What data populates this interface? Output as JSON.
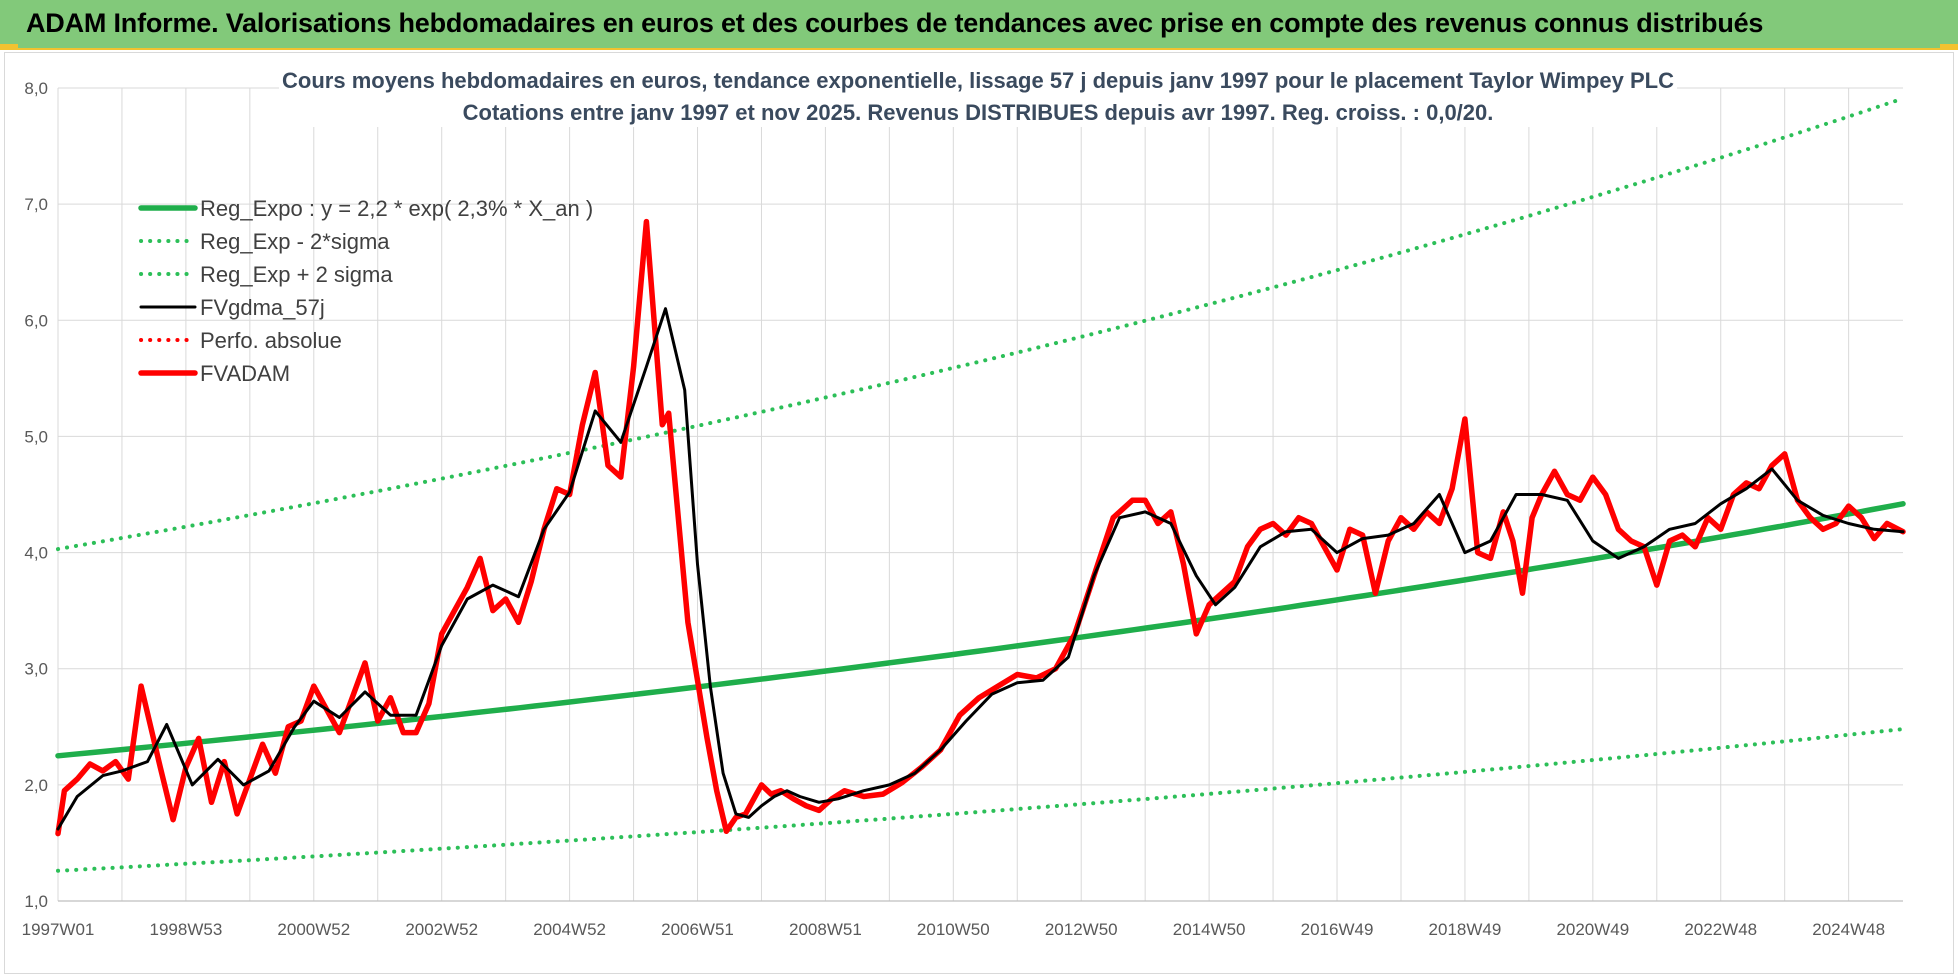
{
  "banner": {
    "title": "ADAM Informe. Valorisations hebdomadaires en euros et des courbes de tendances avec prise en compte des revenus connus distribués"
  },
  "colors": {
    "banner_bg": "#82c97a",
    "accent_yellow": "#f2c230",
    "trend_green": "#1fae4b",
    "dotted_green": "#2cbf58",
    "smooth_black": "#000000",
    "price_red": "#ff0000"
  },
  "chart_data": {
    "type": "line",
    "title": "Cours moyens hebdomadaires en euros, tendance exponentielle, lissage 57 j depuis janv 1997 pour le placement Taylor Wimpey PLC",
    "subtitle": "Cotations entre janv 1997 et nov 2025. Revenus DISTRIBUES depuis avr 1997. Reg. croiss. : 0,0/20.",
    "xlabel": "",
    "ylabel": "",
    "ylim": [
      1.0,
      8.0
    ],
    "y_ticks": [
      "1,0",
      "2,0",
      "3,0",
      "4,0",
      "5,0",
      "6,0",
      "7,0",
      "8,0"
    ],
    "xlim": [
      1997.0,
      2025.85
    ],
    "x_ticks": [
      {
        "x": 1997.0,
        "label": "1997W01"
      },
      {
        "x": 1999.0,
        "label": "1998W53"
      },
      {
        "x": 2001.0,
        "label": "2000W52"
      },
      {
        "x": 2003.0,
        "label": "2002W52"
      },
      {
        "x": 2005.0,
        "label": "2004W52"
      },
      {
        "x": 2007.0,
        "label": "2006W51"
      },
      {
        "x": 2009.0,
        "label": "2008W51"
      },
      {
        "x": 2011.0,
        "label": "2010W50"
      },
      {
        "x": 2013.0,
        "label": "2012W50"
      },
      {
        "x": 2015.0,
        "label": "2014W50"
      },
      {
        "x": 2017.0,
        "label": "2016W49"
      },
      {
        "x": 2019.0,
        "label": "2018W49"
      },
      {
        "x": 2021.0,
        "label": "2020W49"
      },
      {
        "x": 2023.0,
        "label": "2022W48"
      },
      {
        "x": 2025.0,
        "label": "2024W48"
      }
    ],
    "grid": true,
    "legend_position": "top-left",
    "series": [
      {
        "name": "Reg_Expo : y = 2,2 * exp( 2,3% *  X_an )",
        "style": "solid-thick",
        "color": "#1fae4b",
        "x": [
          1997.0,
          2001.0,
          2005.0,
          2009.0,
          2013.0,
          2017.0,
          2021.0,
          2025.85
        ],
        "y": [
          2.25,
          2.47,
          2.7,
          2.96,
          3.27,
          3.58,
          3.95,
          4.42
        ]
      },
      {
        "name": "Reg_Exp - 2*sigma",
        "style": "dotted",
        "color": "#2cbf58",
        "x": [
          1997.0,
          2001.0,
          2005.0,
          2009.0,
          2013.0,
          2017.0,
          2021.0,
          2025.85
        ],
        "y": [
          1.26,
          1.38,
          1.52,
          1.66,
          1.83,
          2.01,
          2.21,
          2.48
        ]
      },
      {
        "name": "Reg_Exp + 2 sigma",
        "style": "dotted",
        "color": "#2cbf58",
        "x": [
          1997.0,
          2001.0,
          2005.0,
          2009.0,
          2013.0,
          2017.0,
          2021.0,
          2025.85
        ],
        "y": [
          4.03,
          4.42,
          4.84,
          5.3,
          5.86,
          6.42,
          7.06,
          7.91
        ]
      },
      {
        "name": "FVgdma_57j",
        "style": "solid",
        "color": "#000000",
        "x": [
          1997.0,
          1997.3,
          1997.7,
          1998.0,
          1998.4,
          1998.7,
          1999.1,
          1999.5,
          1999.9,
          2000.3,
          2000.7,
          2001.0,
          2001.4,
          2001.8,
          2002.2,
          2002.6,
          2003.0,
          2003.4,
          2003.8,
          2004.2,
          2004.6,
          2005.0,
          2005.4,
          2005.8,
          2006.2,
          2006.5,
          2006.8,
          2007.0,
          2007.2,
          2007.4,
          2007.6,
          2007.8,
          2008.0,
          2008.2,
          2008.4,
          2008.6,
          2008.9,
          2009.2,
          2009.6,
          2010.0,
          2010.4,
          2010.8,
          2011.2,
          2011.6,
          2012.0,
          2012.4,
          2012.8,
          2013.2,
          2013.6,
          2014.0,
          2014.4,
          2014.8,
          2015.1,
          2015.4,
          2015.8,
          2016.2,
          2016.6,
          2017.0,
          2017.4,
          2017.8,
          2018.2,
          2018.6,
          2019.0,
          2019.4,
          2019.8,
          2020.2,
          2020.6,
          2021.0,
          2021.4,
          2021.8,
          2022.2,
          2022.6,
          2023.0,
          2023.4,
          2023.8,
          2024.2,
          2024.6,
          2025.0,
          2025.4,
          2025.85
        ],
        "y": [
          1.62,
          1.9,
          2.08,
          2.12,
          2.2,
          2.52,
          2.0,
          2.22,
          2.0,
          2.12,
          2.5,
          2.72,
          2.58,
          2.8,
          2.6,
          2.6,
          3.2,
          3.6,
          3.72,
          3.62,
          4.2,
          4.52,
          5.22,
          4.95,
          5.6,
          6.1,
          5.4,
          3.9,
          2.85,
          2.1,
          1.75,
          1.72,
          1.82,
          1.9,
          1.95,
          1.9,
          1.85,
          1.88,
          1.95,
          2.0,
          2.1,
          2.3,
          2.55,
          2.78,
          2.88,
          2.9,
          3.1,
          3.8,
          4.3,
          4.35,
          4.25,
          3.8,
          3.55,
          3.7,
          4.05,
          4.18,
          4.2,
          4.0,
          4.12,
          4.15,
          4.25,
          4.5,
          4.0,
          4.1,
          4.5,
          4.5,
          4.45,
          4.1,
          3.95,
          4.05,
          4.2,
          4.25,
          4.42,
          4.55,
          4.72,
          4.45,
          4.32,
          4.25,
          4.2,
          4.18
        ]
      },
      {
        "name": "Perfo. absolue",
        "style": "dotted",
        "color": "#ff0000",
        "x": [],
        "y": []
      },
      {
        "name": "FVADAM",
        "style": "solid-thick",
        "color": "#ff0000",
        "x": [
          1997.0,
          1997.1,
          1997.3,
          1997.5,
          1997.7,
          1997.9,
          1998.1,
          1998.3,
          1998.45,
          1998.6,
          1998.8,
          1999.0,
          1999.2,
          1999.4,
          1999.6,
          1999.8,
          2000.0,
          2000.2,
          2000.4,
          2000.6,
          2000.8,
          2001.0,
          2001.2,
          2001.4,
          2001.6,
          2001.8,
          2002.0,
          2002.2,
          2002.4,
          2002.6,
          2002.8,
          2003.0,
          2003.2,
          2003.4,
          2003.6,
          2003.8,
          2004.0,
          2004.2,
          2004.4,
          2004.6,
          2004.8,
          2005.0,
          2005.2,
          2005.4,
          2005.6,
          2005.8,
          2006.0,
          2006.2,
          2006.35,
          2006.45,
          2006.55,
          2006.7,
          2006.85,
          2007.0,
          2007.15,
          2007.3,
          2007.45,
          2007.6,
          2007.75,
          2007.9,
          2008.0,
          2008.15,
          2008.3,
          2008.5,
          2008.7,
          2008.9,
          2009.1,
          2009.3,
          2009.6,
          2009.9,
          2010.2,
          2010.5,
          2010.8,
          2011.1,
          2011.4,
          2011.7,
          2012.0,
          2012.3,
          2012.6,
          2012.9,
          2013.2,
          2013.5,
          2013.8,
          2014.0,
          2014.2,
          2014.4,
          2014.6,
          2014.8,
          2015.0,
          2015.2,
          2015.4,
          2015.6,
          2015.8,
          2016.0,
          2016.2,
          2016.4,
          2016.6,
          2016.8,
          2017.0,
          2017.2,
          2017.4,
          2017.6,
          2017.8,
          2018.0,
          2018.2,
          2018.4,
          2018.6,
          2018.8,
          2019.0,
          2019.2,
          2019.4,
          2019.6,
          2019.75,
          2019.9,
          2020.05,
          2020.2,
          2020.4,
          2020.6,
          2020.8,
          2021.0,
          2021.2,
          2021.4,
          2021.6,
          2021.8,
          2022.0,
          2022.2,
          2022.4,
          2022.6,
          2022.8,
          2023.0,
          2023.2,
          2023.4,
          2023.6,
          2023.8,
          2024.0,
          2024.2,
          2024.4,
          2024.6,
          2024.8,
          2025.0,
          2025.2,
          2025.4,
          2025.6,
          2025.85
        ],
        "y": [
          1.58,
          1.95,
          2.05,
          2.18,
          2.12,
          2.2,
          2.05,
          2.85,
          2.5,
          2.15,
          1.7,
          2.15,
          2.4,
          1.85,
          2.2,
          1.75,
          2.05,
          2.35,
          2.1,
          2.5,
          2.55,
          2.85,
          2.65,
          2.45,
          2.75,
          3.05,
          2.55,
          2.75,
          2.45,
          2.45,
          2.7,
          3.3,
          3.5,
          3.7,
          3.95,
          3.5,
          3.6,
          3.4,
          3.75,
          4.2,
          4.55,
          4.5,
          5.1,
          5.55,
          4.75,
          4.65,
          5.6,
          6.85,
          5.8,
          5.1,
          5.2,
          4.3,
          3.4,
          2.9,
          2.4,
          1.95,
          1.6,
          1.72,
          1.75,
          1.9,
          2.0,
          1.92,
          1.95,
          1.88,
          1.82,
          1.78,
          1.88,
          1.95,
          1.9,
          1.92,
          2.02,
          2.15,
          2.3,
          2.6,
          2.75,
          2.85,
          2.95,
          2.92,
          3.0,
          3.3,
          3.8,
          4.3,
          4.45,
          4.45,
          4.25,
          4.35,
          3.9,
          3.3,
          3.55,
          3.65,
          3.75,
          4.05,
          4.2,
          4.25,
          4.15,
          4.3,
          4.25,
          4.05,
          3.85,
          4.2,
          4.15,
          3.65,
          4.1,
          4.3,
          4.2,
          4.35,
          4.25,
          4.55,
          5.15,
          4.0,
          3.95,
          4.35,
          4.1,
          3.65,
          4.3,
          4.5,
          4.7,
          4.5,
          4.45,
          4.65,
          4.5,
          4.2,
          4.1,
          4.05,
          3.72,
          4.1,
          4.15,
          4.05,
          4.3,
          4.2,
          4.5,
          4.6,
          4.55,
          4.75,
          4.85,
          4.45,
          4.3,
          4.2,
          4.25,
          4.4,
          4.3,
          4.12,
          4.25,
          4.18
        ]
      }
    ]
  }
}
